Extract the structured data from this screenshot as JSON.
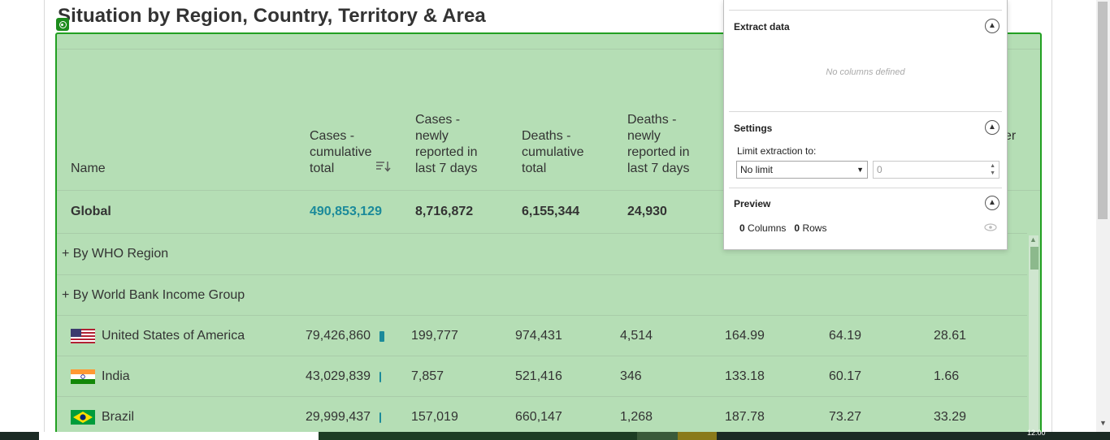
{
  "section": {
    "title": "Situation by Region, Country, Territory & Area"
  },
  "table": {
    "headers": {
      "name": "Name",
      "cases_cum": "Cases - cumulative total",
      "cases_7d": "Cases - newly reported in last 7 days",
      "deaths_cum": "Deaths - cumulative total",
      "deaths_7d": "Deaths - newly reported in last 7 days",
      "partial_right": "er"
    },
    "global": {
      "name": "Global",
      "cases_cum": "490,853,129",
      "cases_7d": "8,716,872",
      "deaths_cum": "6,155,344",
      "deaths_7d": "24,930"
    },
    "groups": [
      {
        "label": "+ By WHO Region"
      },
      {
        "label": "+ By World Bank Income Group"
      }
    ],
    "rows": [
      {
        "flag": "us-flag-icon",
        "name": "United States of America",
        "cases_cum": "79,426,860",
        "cases_7d": "199,777",
        "deaths_cum": "974,431",
        "deaths_7d": "4,514",
        "c5": "164.99",
        "c6": "64.19",
        "c7": "28.61"
      },
      {
        "flag": "india-flag-icon",
        "name": "India",
        "cases_cum": "43,029,839",
        "cases_7d": "7,857",
        "deaths_cum": "521,416",
        "deaths_7d": "346",
        "c5": "133.18",
        "c6": "60.17",
        "c7": "1.66"
      },
      {
        "flag": "brazil-flag-icon",
        "name": "Brazil",
        "cases_cum": "29,999,437",
        "cases_7d": "157,019",
        "deaths_cum": "660,147",
        "deaths_7d": "1,268",
        "c5": "187.78",
        "c6": "73.27",
        "c7": "33.29"
      }
    ]
  },
  "panel": {
    "extract": {
      "title": "Extract data",
      "empty": "No columns defined"
    },
    "settings": {
      "title": "Settings",
      "limit_label": "Limit extraction to:",
      "limit_value": "No limit",
      "limit_number": "0"
    },
    "preview": {
      "title": "Preview",
      "columns_count": "0",
      "columns_label": "Columns",
      "rows_count": "0",
      "rows_label": "Rows"
    }
  },
  "taskbar": {
    "clock": "12:00"
  }
}
